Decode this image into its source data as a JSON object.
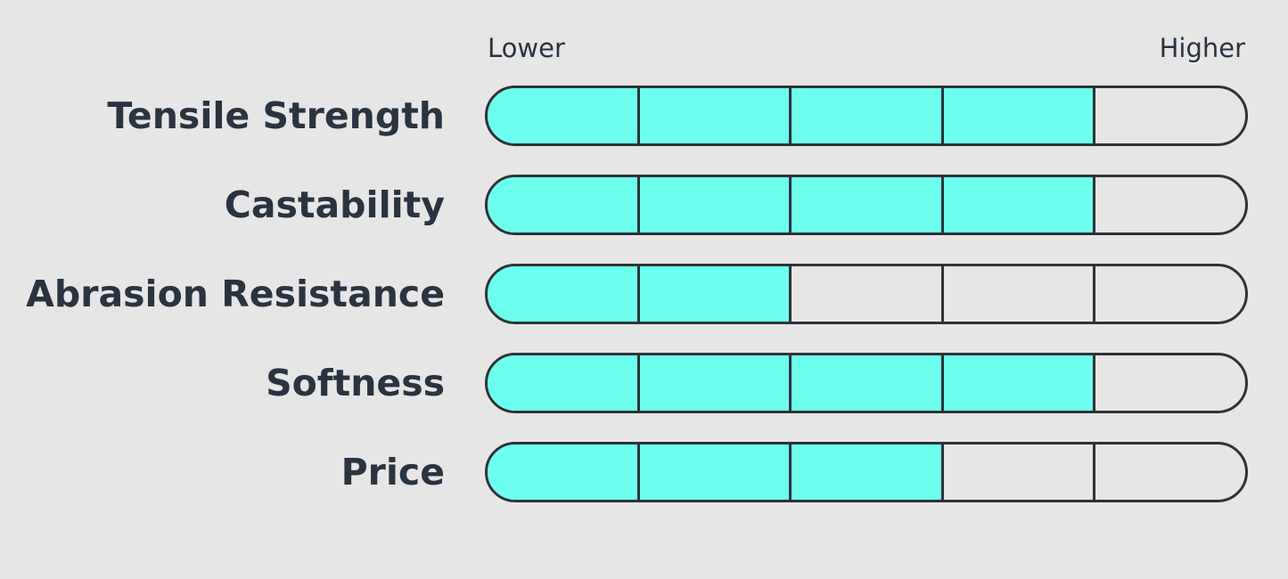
{
  "chart_data": {
    "type": "bar",
    "scale": {
      "min_label": "Lower",
      "max_label": "Higher",
      "steps": 5
    },
    "categories": [
      "Tensile Strength",
      "Castability",
      "Abrasion Resistance",
      "Softness",
      "Price"
    ],
    "values": [
      4,
      4,
      2,
      4,
      3
    ],
    "colors": {
      "filled": "#6cffee",
      "empty": "#e6e6e6",
      "outline": "#2e3338",
      "text": "#2a3440"
    }
  }
}
